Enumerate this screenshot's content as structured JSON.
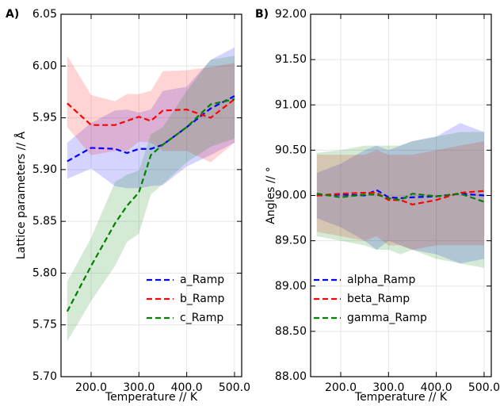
{
  "chart_data": [
    {
      "type": "line",
      "panel_label": "A)",
      "xlabel": "Temperature  //  K",
      "ylabel": "Lattice parameters  //  Å",
      "x": [
        150,
        200,
        250,
        275,
        300,
        325,
        350,
        400,
        450,
        500
      ],
      "xlim": [
        137,
        515
      ],
      "xticks": [
        {
          "value": 200,
          "label": "200.0"
        },
        {
          "value": 300,
          "label": "300.0"
        },
        {
          "value": 400,
          "label": "400.0"
        },
        {
          "value": 500,
          "label": "500.0"
        }
      ],
      "ylim": [
        5.7,
        6.05
      ],
      "yticks": [
        {
          "value": 5.7,
          "label": "5.70"
        },
        5.75,
        {
          "value": 5.8,
          "label": "5.80"
        },
        5.85,
        {
          "value": 5.9,
          "label": "5.90"
        },
        5.95,
        {
          "value": 6.0,
          "label": "6.00"
        },
        6.05
      ],
      "grid": true,
      "legend": "lower right",
      "series": [
        {
          "name": "a_Ramp",
          "color": "#0000ff",
          "values": [
            5.908,
            5.921,
            5.92,
            5.916,
            5.92,
            5.92,
            5.924,
            5.941,
            5.959,
            5.971
          ],
          "lower": [
            5.891,
            5.901,
            5.884,
            5.882,
            5.882,
            5.884,
            5.885,
            5.903,
            5.914,
            5.926
          ],
          "upper": [
            5.926,
            5.945,
            5.957,
            5.958,
            5.955,
            5.958,
            5.976,
            5.98,
            6.006,
            6.018
          ]
        },
        {
          "name": "b_Ramp",
          "color": "#ff0000",
          "values": [
            5.964,
            5.943,
            5.943,
            5.947,
            5.951,
            5.947,
            5.957,
            5.958,
            5.95,
            5.968
          ],
          "lower": [
            5.941,
            5.914,
            5.918,
            5.918,
            5.927,
            5.926,
            5.918,
            5.918,
            5.907,
            5.926
          ],
          "upper": [
            6.01,
            5.972,
            5.966,
            5.973,
            5.973,
            5.976,
            5.995,
            5.996,
            5.999,
            6.003
          ]
        },
        {
          "name": "c_Ramp",
          "color": "#008000",
          "values": [
            5.763,
            5.807,
            5.848,
            5.865,
            5.878,
            5.914,
            5.924,
            5.941,
            5.963,
            5.968
          ],
          "lower": [
            5.734,
            5.773,
            5.807,
            5.83,
            5.838,
            5.876,
            5.886,
            5.907,
            5.922,
            5.93
          ],
          "upper": [
            5.792,
            5.834,
            5.888,
            5.895,
            5.899,
            5.934,
            5.941,
            5.976,
            6.006,
            6.01
          ]
        }
      ]
    },
    {
      "type": "line",
      "panel_label": "B)",
      "xlabel": "Temperature  //  K",
      "ylabel": "Angles  //  °",
      "x": [
        150,
        200,
        250,
        275,
        300,
        325,
        350,
        400,
        450,
        500
      ],
      "xlim": [
        137,
        515
      ],
      "xticks": [
        {
          "value": 200,
          "label": "200.0"
        },
        {
          "value": 300,
          "label": "300.0"
        },
        {
          "value": 400,
          "label": "400.0"
        },
        {
          "value": 500,
          "label": "500.0"
        }
      ],
      "ylim": [
        88,
        92
      ],
      "yticks": [
        {
          "value": 88,
          "label": "88.00"
        },
        {
          "value": 88.5,
          "label": "88.50"
        },
        {
          "value": 89,
          "label": "89.00"
        },
        {
          "value": 89.5,
          "label": "89.50"
        },
        {
          "value": 90,
          "label": "90.00"
        },
        {
          "value": 90.5,
          "label": "90.50"
        },
        {
          "value": 91,
          "label": "91.00"
        },
        {
          "value": 91.5,
          "label": "91.50"
        },
        {
          "value": 92,
          "label": "92.00"
        }
      ],
      "grid": true,
      "legend": "lower left",
      "series": [
        {
          "name": "alpha_Ramp",
          "color": "#0000ff",
          "values": [
            90.0,
            90.01,
            90.0,
            90.06,
            89.98,
            89.97,
            89.98,
            89.99,
            90.02,
            90.0
          ],
          "lower": [
            89.75,
            89.65,
            89.5,
            89.4,
            89.5,
            89.45,
            89.4,
            89.35,
            89.25,
            89.3
          ],
          "upper": [
            90.25,
            90.35,
            90.5,
            90.55,
            90.5,
            90.55,
            90.6,
            90.65,
            90.8,
            90.7
          ]
        },
        {
          "name": "beta_Ramp",
          "color": "#ff0000",
          "values": [
            90.0,
            90.02,
            90.03,
            90.03,
            89.95,
            89.95,
            89.9,
            89.95,
            90.03,
            90.05
          ],
          "lower": [
            89.6,
            89.55,
            89.5,
            89.55,
            89.45,
            89.45,
            89.4,
            89.45,
            89.45,
            89.45
          ],
          "upper": [
            90.45,
            90.45,
            90.45,
            90.5,
            90.45,
            90.45,
            90.45,
            90.5,
            90.55,
            90.6
          ]
        },
        {
          "name": "gamma_Ramp",
          "color": "#008000",
          "values": [
            90.02,
            89.98,
            90.01,
            90.01,
            89.97,
            89.95,
            90.02,
            89.99,
            90.02,
            89.93
          ],
          "lower": [
            89.55,
            89.5,
            89.45,
            89.4,
            89.4,
            89.35,
            89.4,
            89.3,
            89.25,
            89.2
          ],
          "upper": [
            90.47,
            90.5,
            90.55,
            90.55,
            90.55,
            90.55,
            90.6,
            90.65,
            90.7,
            90.7
          ]
        }
      ]
    }
  ]
}
